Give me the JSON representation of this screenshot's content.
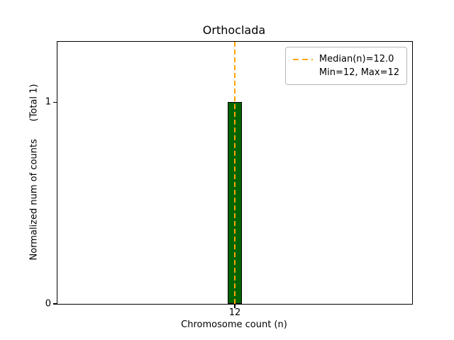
{
  "chart_data": {
    "type": "bar",
    "title": "Orthoclada",
    "xlabel": "Chromosome count (n)",
    "ylabel": "Normalized num of counts      (Total 1)",
    "categories": [
      "12"
    ],
    "values": [
      1
    ],
    "ylim": [
      0,
      1.3
    ],
    "yticks": [
      0,
      1
    ],
    "grid": false,
    "bar_color": "#006400",
    "bar_edge_color": "#000000",
    "median_line": {
      "value": 12,
      "color": "#FFA500",
      "style": "dashed"
    },
    "legend": {
      "position": "upper right",
      "entries": [
        {
          "label": "Median(n)=12.0",
          "marker": "dashed-line",
          "color": "#FFA500"
        },
        {
          "label": "Min=12, Max=12",
          "marker": "none"
        }
      ]
    }
  }
}
